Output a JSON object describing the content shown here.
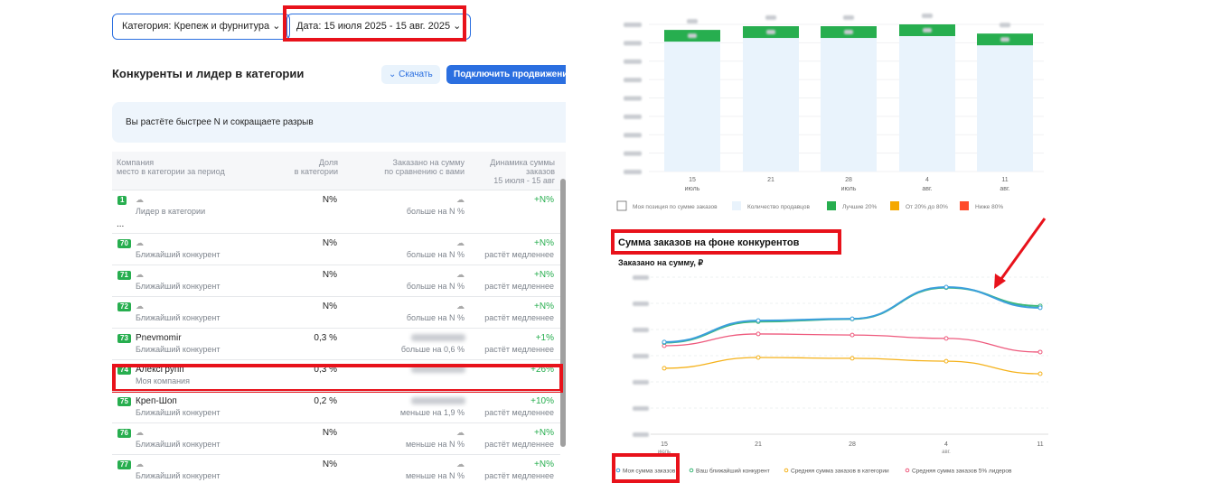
{
  "filters": {
    "category": "Категория: Крепеж и фурнитура",
    "date": "Дата: 15 июля 2025 - 15 авг. 2025"
  },
  "section": {
    "title": "Конкуренты и лидер в категории",
    "download": "Скачать",
    "promote": "Подключить продвижение"
  },
  "banner": "Вы растёте быстрее N и сокращаете разрыв",
  "table": {
    "headers": [
      {
        "title": "Компания",
        "sub": "место в категории за период"
      },
      {
        "title": "Доля",
        "sub": "в категории"
      },
      {
        "title": "Заказано на сумму",
        "sub": "по сравнению с вами"
      },
      {
        "title": "Динамика суммы заказов",
        "sub": "15 июля - 15 авг"
      }
    ],
    "rows": [
      {
        "rank": "1",
        "sub": "Лидер в категории",
        "share": "N%",
        "compare": "больше на N %",
        "dynamics": "+N%"
      },
      {
        "ellipsis": "..."
      },
      {
        "rank": "70",
        "sub": "Ближайший конкурент",
        "share": "N%",
        "compare": "больше на N %",
        "dynamics": "+N%",
        "note": "растёт медленнее"
      },
      {
        "rank": "71",
        "sub": "Ближайший конкурент",
        "share": "N%",
        "compare": "больше на N %",
        "dynamics": "+N%",
        "note": "растёт медленнее"
      },
      {
        "rank": "72",
        "sub": "Ближайший конкурент",
        "share": "N%",
        "compare": "больше на N %",
        "dynamics": "+N%",
        "note": "растёт медленнее"
      },
      {
        "rank": "73",
        "name": "Pnevmomir",
        "sub": "Ближайший конкурент",
        "share": "0,3 %",
        "compare": "больше на 0,6 %",
        "dynamics": "+1%",
        "note": "растёт медленнее"
      },
      {
        "rank": "74",
        "name": "АлексГрупп",
        "sub": "Моя компания",
        "share": "0,3 %",
        "dynamics": "+26%",
        "highlight": true
      },
      {
        "rank": "75",
        "name": "Креп-Шоп",
        "sub": "Ближайший конкурент",
        "share": "0,2 %",
        "compare": "меньше на 1,9 %",
        "dynamics": "+10%",
        "note": "растёт медленнее"
      },
      {
        "rank": "76",
        "sub": "Ближайший конкурент",
        "share": "N%",
        "compare": "меньше на N %",
        "dynamics": "+N%",
        "note": "растёт медленнее"
      },
      {
        "rank": "77",
        "sub": "Ближайший конкурент",
        "share": "N%",
        "compare": "меньше на N %",
        "dynamics": "+N%",
        "note": "растёт медленнее"
      }
    ]
  },
  "chart_data": [
    {
      "type": "bar",
      "categories": [
        "15",
        "21",
        "28",
        "4",
        "11"
      ],
      "x_sub": [
        "июль",
        null,
        "июль",
        "авг.",
        "авг."
      ],
      "ylim": [
        0,
        8
      ],
      "yticks": [
        0,
        1,
        2,
        3,
        4,
        5,
        6,
        7,
        8
      ],
      "grid": true,
      "series": [
        {
          "name": "Моя позиция по сумме заказов",
          "color": "#27ae4f",
          "values": [
            7.7,
            7.9,
            7.9,
            8.0,
            7.5
          ]
        },
        {
          "name": "Количество продавцов",
          "color": "#e9f3fc",
          "values": [
            7.2,
            7.4,
            7.4,
            7.5,
            7.0
          ]
        }
      ],
      "bands": [
        {
          "name": "Лучшие 20%",
          "color": "#27ae4f"
        },
        {
          "name": "От 20% до 80%",
          "color": "#f5a800"
        },
        {
          "name": "Ниже 80%",
          "color": "#ff4b2b"
        }
      ]
    },
    {
      "type": "line",
      "title": "Сумма заказов на фоне конкурентов",
      "subtitle": "Заказано на сумму, ₽",
      "categories": [
        "15",
        "21",
        "28",
        "4",
        "11"
      ],
      "x_sub": [
        "июль",
        null,
        null,
        "авг.",
        null
      ],
      "ylim": [
        0,
        6
      ],
      "yticks": [
        0,
        1,
        2,
        3,
        4,
        5,
        6
      ],
      "grid": true,
      "series": [
        {
          "name": "Моя сумма заказов",
          "color": "#3b9fdc",
          "values": [
            3.52,
            4.34,
            4.41,
            5.62,
            4.83
          ]
        },
        {
          "name": "Ваш ближайший конкурент",
          "color": "#3cb878",
          "values": [
            3.5,
            4.3,
            4.4,
            5.6,
            4.9
          ]
        },
        {
          "name": "Средняя сумма заказов в категории",
          "color": "#f5b21b",
          "values": [
            2.52,
            2.93,
            2.9,
            2.79,
            2.31
          ]
        },
        {
          "name": "Средняя сумма заказов 5% лидеров",
          "color": "#ee5a7d",
          "values": [
            3.38,
            3.83,
            3.79,
            3.66,
            3.14
          ]
        }
      ]
    }
  ]
}
